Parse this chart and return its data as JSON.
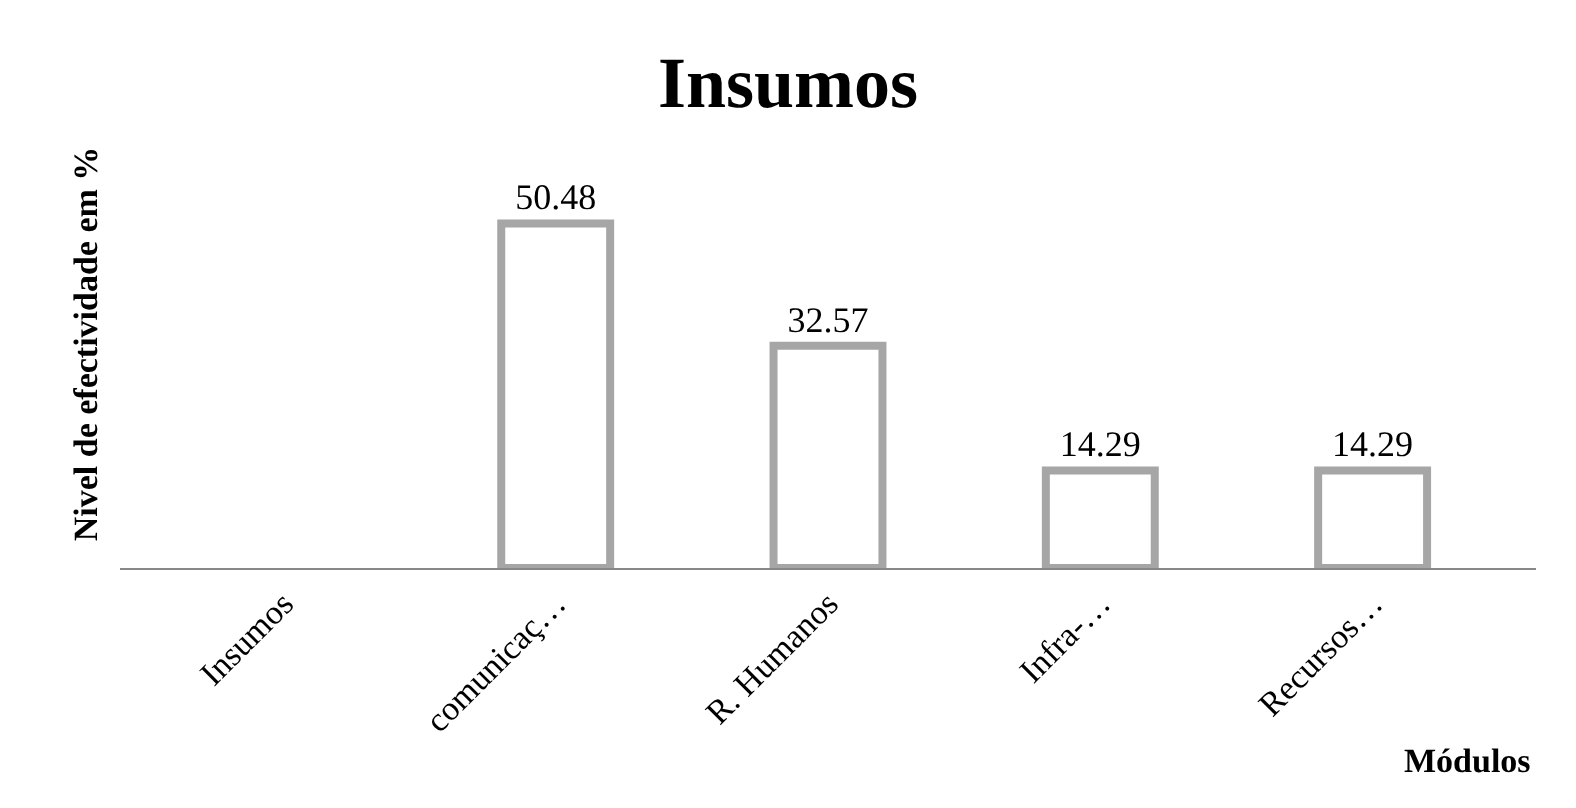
{
  "chart_data": {
    "type": "bar",
    "title": "Insumos",
    "xlabel": "Módulos",
    "ylabel": "Nivel de efectividade em %",
    "categories": [
      "Insumos",
      "comunicaç…",
      "R. Humanos",
      "Infra-…",
      "Recursos…"
    ],
    "values": [
      null,
      50.48,
      32.57,
      14.29,
      14.29
    ],
    "color": "#a6a6a6",
    "data_labels": true
  }
}
